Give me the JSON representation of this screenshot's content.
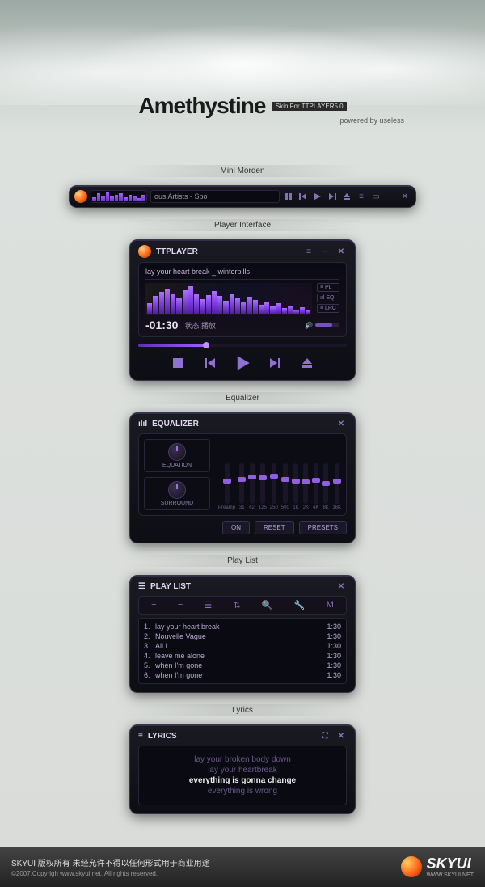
{
  "colors": {
    "accent": "#8850d8",
    "accent_light": "#b070ff",
    "panel_bg": "#12101a",
    "panel_border": "#3a3448",
    "text_primary": "#e0d8f0",
    "text_dim": "#9080b0"
  },
  "header": {
    "title": "Amethystine",
    "badge": "Skin For TTPLAYER5.0",
    "subtitle": "powered by useless"
  },
  "sections": {
    "mini": "Mini Morden",
    "player": "Player Interface",
    "eq": "Equalizer",
    "playlist": "Play List",
    "lyrics": "Lyrics"
  },
  "mini": {
    "track": "ous Artists - Spo",
    "viz_heights": [
      40,
      80,
      60,
      95,
      50,
      70,
      85,
      45,
      65,
      55,
      30,
      70
    ]
  },
  "player": {
    "app_title": "TTPLAYER",
    "track_title": "lay your heart break _ winterpills",
    "time": "-01:30",
    "status": "状态:播放",
    "side": {
      "pl": "PL",
      "eq": "EQ",
      "lrc": "LRC"
    },
    "progress_pct": 33,
    "spectrum": [
      35,
      60,
      75,
      85,
      70,
      55,
      80,
      95,
      70,
      50,
      65,
      78,
      60,
      45,
      68,
      55,
      42,
      58,
      48,
      30,
      40,
      25,
      35,
      20,
      28,
      15,
      22,
      12
    ]
  },
  "eq": {
    "title": "EQUALIZER",
    "knobs": {
      "equation": "EQUATION",
      "surround": "SURROUND"
    },
    "bands": [
      "Preamp",
      "31",
      "62",
      "125",
      "250",
      "500",
      "1K",
      "2K",
      "4K",
      "8K",
      "16K"
    ],
    "positions": [
      50,
      55,
      60,
      58,
      62,
      55,
      50,
      48,
      52,
      45,
      50
    ],
    "buttons": {
      "on": "ON",
      "reset": "RESET",
      "presets": "PRESETS"
    }
  },
  "playlist": {
    "title": "PLAY LIST",
    "items": [
      {
        "n": "1.",
        "name": "lay your heart break",
        "dur": "1:30"
      },
      {
        "n": "2.",
        "name": "Nouvelle Vague",
        "dur": "1:30"
      },
      {
        "n": "3.",
        "name": "All I",
        "dur": "1:30"
      },
      {
        "n": "4.",
        "name": "leave me alone",
        "dur": "1:30"
      },
      {
        "n": "5.",
        "name": "when I'm gone",
        "dur": "1:30"
      },
      {
        "n": "6.",
        "name": "when I'm gone",
        "dur": "1:30"
      }
    ]
  },
  "lyrics": {
    "title": "LYRICS",
    "lines": [
      {
        "t": "lay your broken body down",
        "cur": false
      },
      {
        "t": "lay your heartbreak",
        "cur": false
      },
      {
        "t": "everything is gonna change",
        "cur": true
      },
      {
        "t": "everything is wrong",
        "cur": false
      }
    ]
  },
  "footer": {
    "line1": "SKYUI  版权所有  未经允许不得以任何形式用于商业用途",
    "line2": "©2007.Copyrigh www.skyui.net. All rights reserved.",
    "brand": "SKYUI",
    "brand_sub": "WWW.SKYUI.NET"
  }
}
